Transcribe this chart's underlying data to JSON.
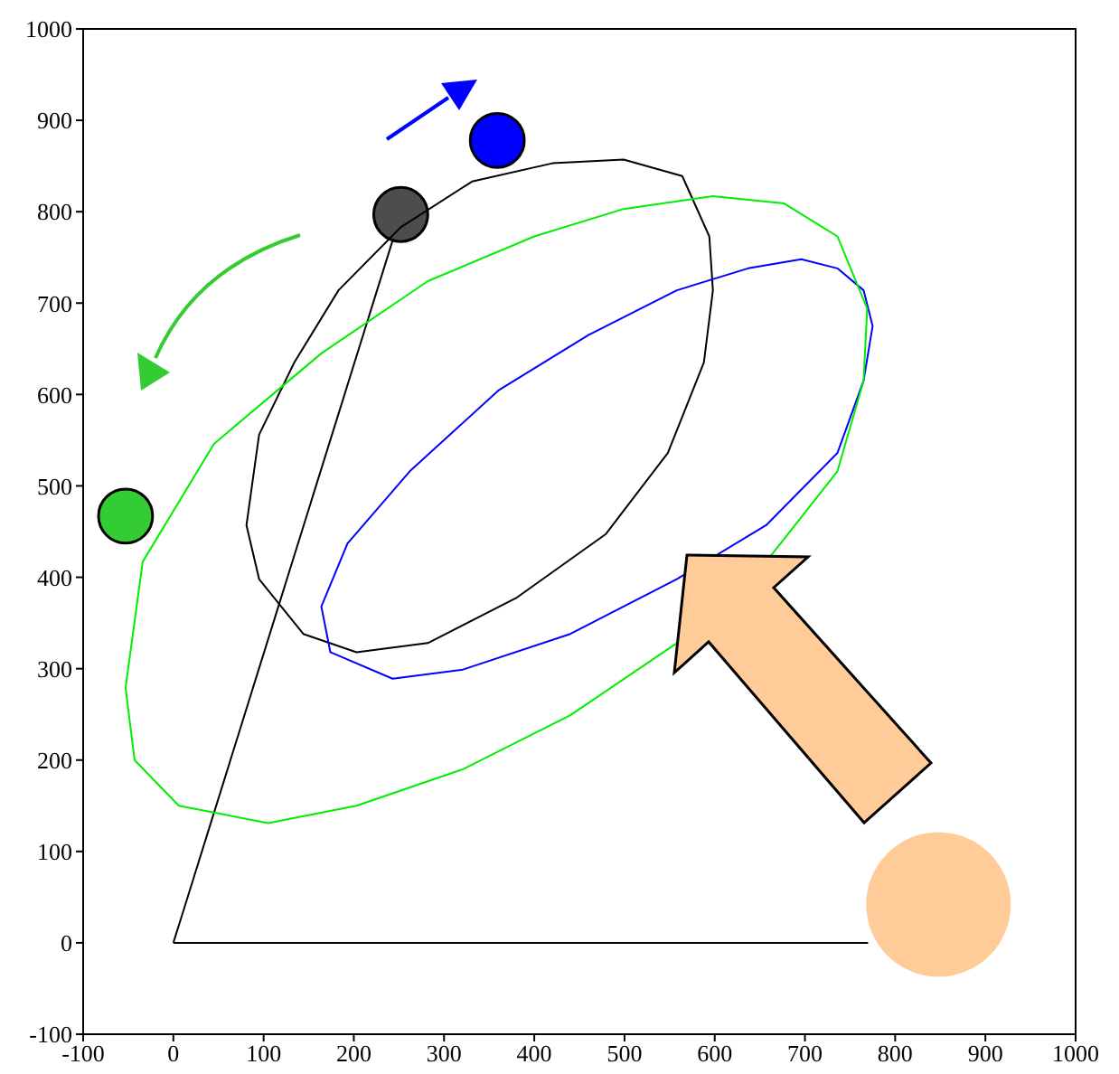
{
  "chart_data": {
    "type": "line",
    "xlim": [
      -100,
      1000
    ],
    "ylim": [
      -100,
      1000
    ],
    "xticks": [
      -100,
      0,
      100,
      200,
      300,
      400,
      500,
      600,
      700,
      800,
      900,
      1000
    ],
    "yticks": [
      -100,
      0,
      100,
      200,
      300,
      400,
      500,
      600,
      700,
      800,
      900,
      1000
    ],
    "grid": false,
    "legend": false,
    "marker": "none",
    "line_style": "solid",
    "series": [
      {
        "color": "#000000",
        "x": [
          0,
          252
        ],
        "values": [
          0,
          797
        ]
      },
      {
        "color": "#000000",
        "x": [
          0,
          770
        ],
        "values": [
          0,
          0
        ]
      },
      {
        "type": "bubble",
        "marker": "circle",
        "x": [
          -53,
          252,
          359,
          848
        ],
        "values": [
          467,
          797,
          878,
          42
        ],
        "sizes": [
          0.14,
          0.14,
          0.14,
          1
        ],
        "colors": [
          "#33cc33",
          "#4d4d4d",
          "#0000ff",
          "#ffcc99"
        ]
      }
    ]
  }
}
